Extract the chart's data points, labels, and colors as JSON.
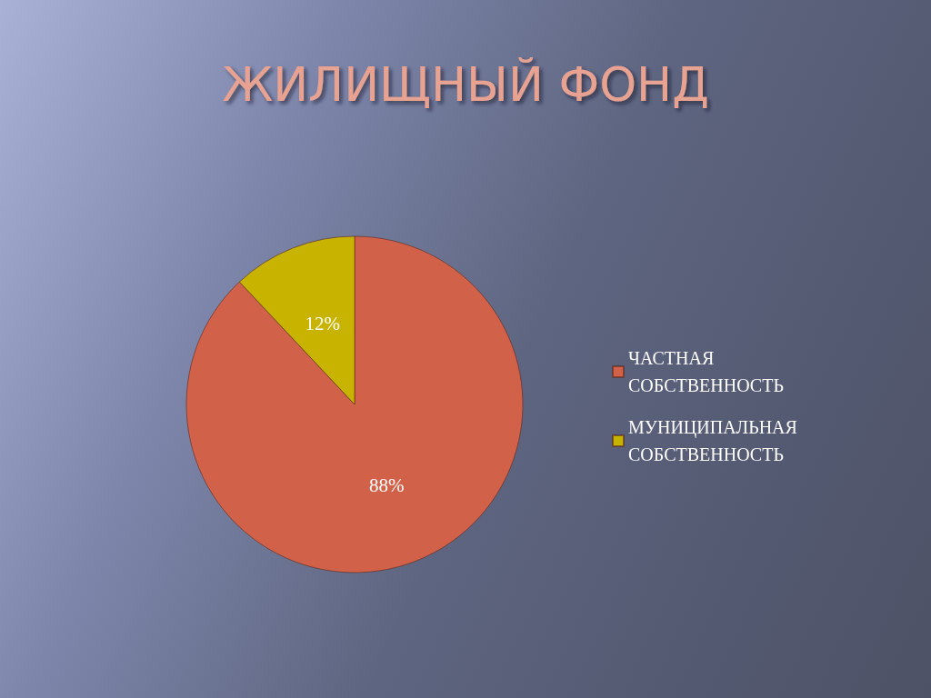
{
  "chart_data": {
    "type": "pie",
    "title": "ЖИЛИЩНЫЙ ФОНД",
    "categories": [
      "ЧАСТНАЯ СОБСТВЕННОСТЬ",
      "МУНИЦИПАЛЬНАЯ СОБСТВЕННОСТЬ"
    ],
    "values": [
      88,
      12
    ],
    "colors": [
      "#d2614a",
      "#c8b400"
    ],
    "value_labels": [
      "88%",
      "12%"
    ],
    "legend": "right"
  }
}
